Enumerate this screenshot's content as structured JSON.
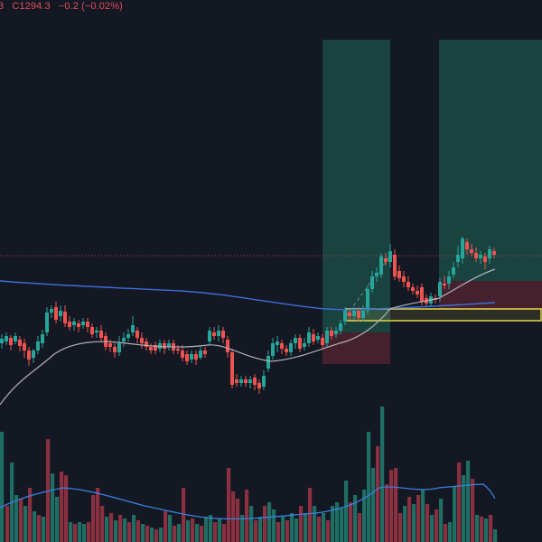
{
  "header": {
    "open_fragment": "3",
    "close_label": "C1294.3",
    "change": "−0.2 (−0.02%)"
  },
  "colors": {
    "background": "#141823",
    "bull": "#26a69a",
    "bear": "#ef5350",
    "ma_fast": "#b0b0b8",
    "ma_slow": "#3a6fd8",
    "volume_ma": "#3a80e0",
    "profit_zone": "#1b4a44",
    "loss_zone": "#4a2230",
    "highlight_box": "#e8d84a",
    "price_line": "#e0505b"
  },
  "chart_data": {
    "type": "candlestick",
    "series": [
      {
        "name": "",
        "type": "candlestick"
      },
      {
        "name": "",
        "type": "line"
      },
      {
        "name": "",
        "type": "line"
      },
      {
        "name": "",
        "type": "bar"
      },
      {
        "name": "",
        "type": "line"
      }
    ],
    "grid": false,
    "last_close": 1294.3,
    "change": -0.2,
    "change_pct": -0.02
  }
}
